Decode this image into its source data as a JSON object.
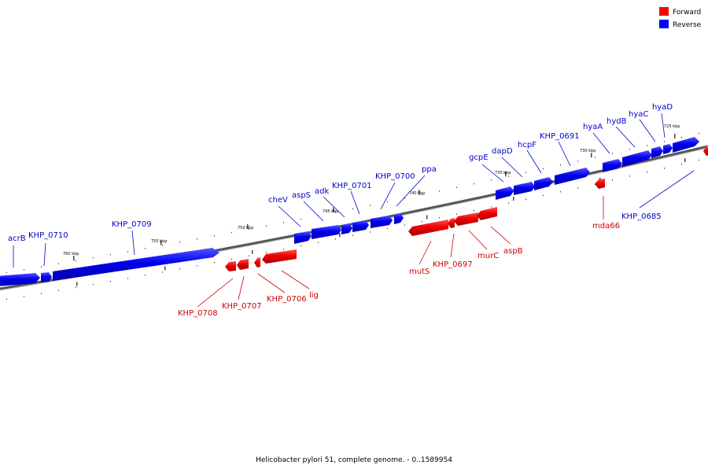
{
  "legend": {
    "forward": {
      "label": "Forward",
      "color": "#ff0000"
    },
    "reverse": {
      "label": "Reverse",
      "color": "#0000ff"
    }
  },
  "colors": {
    "forward_text": "#cc0000",
    "reverse_text": "#0000cc",
    "backbone": "#888888"
  },
  "footer": "Helicobacter pylori 51, complete genome. - 0..1589954",
  "scale_labels": [
    "760 kbp",
    "755 kbp",
    "750 kbp",
    "745 kbp",
    "740 kbp",
    "735 kbp",
    "730 kbp",
    "725 kbp"
  ],
  "reverse_genes": [
    "acrB",
    "KHP_0710",
    "KHP_0709",
    "cheV",
    "aspS",
    "adk",
    "KHP_0701",
    "KHP_0700",
    "ppa",
    "gcpE",
    "dapD",
    "hcpF",
    "KHP_0691",
    "hyaA",
    "hydB",
    "hyaC",
    "hyaD",
    "KHP_0685"
  ],
  "forward_genes": [
    "KHP_0708",
    "KHP_0707",
    "KHP_0706",
    "lig",
    "mutS",
    "KHP_0697",
    "murC",
    "aspB",
    "mda66"
  ]
}
